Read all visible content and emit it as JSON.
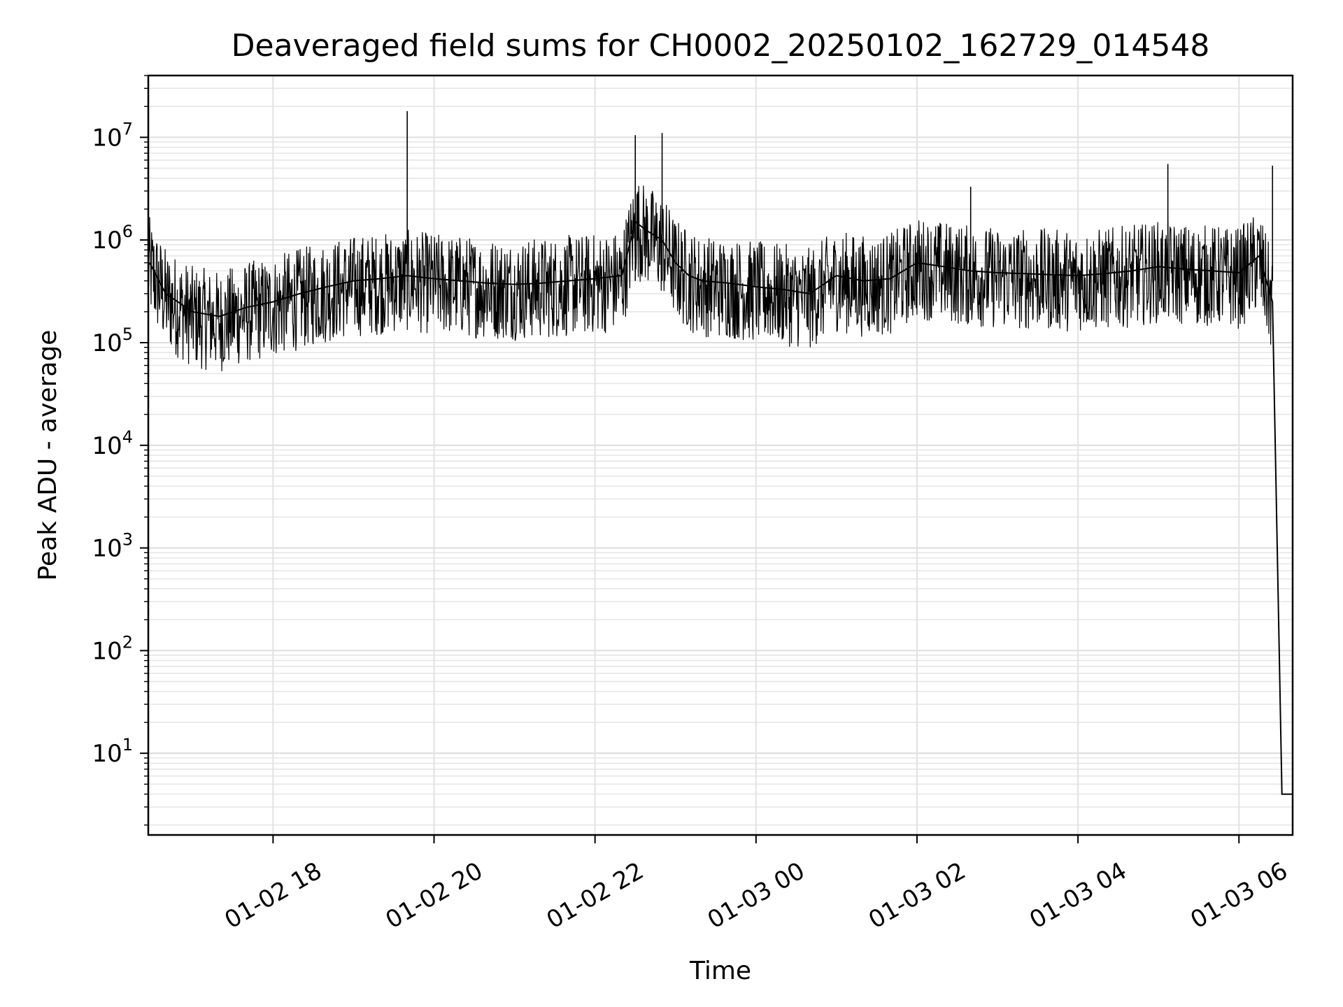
{
  "chart_data": {
    "type": "line",
    "title": "Deaveraged field sums for CH0002_20250102_162729_014548",
    "xlabel": "Time",
    "ylabel": "Peak ADU - average",
    "yscale": "log",
    "ylim": [
      1.6,
      40000000
    ],
    "xlim": [
      "2025-01-02 16:27",
      "2025-01-03 06:40"
    ],
    "grid": true,
    "x_ticks": [
      "01-02 18",
      "01-02 20",
      "01-02 22",
      "01-03 00",
      "01-03 02",
      "01-03 04",
      "01-03 06"
    ],
    "y_ticks": [
      {
        "base": "10",
        "exp": "1"
      },
      {
        "base": "10",
        "exp": "2"
      },
      {
        "base": "10",
        "exp": "3"
      },
      {
        "base": "10",
        "exp": "4"
      },
      {
        "base": "10",
        "exp": "5"
      },
      {
        "base": "10",
        "exp": "6"
      },
      {
        "base": "10",
        "exp": "7"
      }
    ],
    "line_color": "#000000",
    "series": [
      {
        "x": [
          "2025-01-02 16:28",
          "2025-01-02 16:40",
          "2025-01-02 17:00",
          "2025-01-02 17:20",
          "2025-01-02 17:40",
          "2025-01-02 18:00",
          "2025-01-02 18:20",
          "2025-01-02 18:40",
          "2025-01-02 19:00",
          "2025-01-02 19:20",
          "2025-01-02 19:40",
          "2025-01-02 20:00",
          "2025-01-02 20:20",
          "2025-01-02 20:40",
          "2025-01-02 21:00",
          "2025-01-02 21:20",
          "2025-01-02 21:40",
          "2025-01-02 22:00",
          "2025-01-02 22:20",
          "2025-01-02 22:30",
          "2025-01-02 22:40",
          "2025-01-02 22:50",
          "2025-01-02 23:00",
          "2025-01-02 23:10",
          "2025-01-02 23:20",
          "2025-01-02 23:40",
          "2025-01-03 00:00",
          "2025-01-03 00:20",
          "2025-01-03 00:40",
          "2025-01-03 01:00",
          "2025-01-03 01:20",
          "2025-01-03 01:40",
          "2025-01-03 02:00",
          "2025-01-03 02:20",
          "2025-01-03 02:40",
          "2025-01-03 03:00",
          "2025-01-03 03:20",
          "2025-01-03 03:40",
          "2025-01-03 04:00",
          "2025-01-03 04:20",
          "2025-01-03 04:40",
          "2025-01-03 05:00",
          "2025-01-03 05:20",
          "2025-01-03 05:40",
          "2025-01-03 06:00",
          "2025-01-03 06:15",
          "2025-01-03 06:25",
          "2025-01-03 06:30",
          "2025-01-03 06:32",
          "2025-01-03 06:34",
          "2025-01-03 06:40"
        ],
        "y": [
          600000,
          300000,
          200000,
          180000,
          220000,
          250000,
          300000,
          350000,
          400000,
          420000,
          450000,
          420000,
          400000,
          380000,
          370000,
          380000,
          400000,
          420000,
          450000,
          1500000,
          1200000,
          1000000,
          600000,
          450000,
          400000,
          380000,
          350000,
          330000,
          300000,
          450000,
          400000,
          420000,
          600000,
          550000,
          500000,
          480000,
          470000,
          460000,
          450000,
          470000,
          500000,
          550000,
          520000,
          500000,
          480000,
          700000,
          250000,
          100,
          4,
          4,
          4
        ]
      }
    ],
    "spikes": [
      {
        "x": "2025-01-02 19:40",
        "y": 18000000
      },
      {
        "x": "2025-01-02 22:30",
        "y": 10500000
      },
      {
        "x": "2025-01-02 22:50",
        "y": 11000000
      },
      {
        "x": "2025-01-03 02:40",
        "y": 3300000
      },
      {
        "x": "2025-01-03 05:07",
        "y": 5500000
      },
      {
        "x": "2025-01-03 06:25",
        "y": 5300000
      }
    ]
  }
}
